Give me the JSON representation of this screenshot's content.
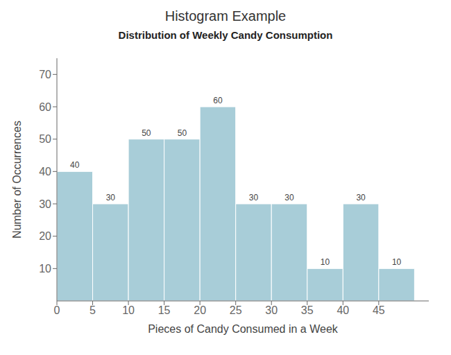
{
  "chart_data": {
    "type": "histogram",
    "title": "Histogram Example",
    "subtitle": "Distribution of Weekly Candy Consumption",
    "xlabel": "Pieces of Candy Consumed in a Week",
    "ylabel": "Number of Occurrences",
    "bins": [
      0,
      5,
      10,
      15,
      20,
      25,
      30,
      35,
      40,
      45,
      50
    ],
    "values": [
      40,
      30,
      50,
      50,
      60,
      30,
      30,
      10,
      30,
      10
    ],
    "color": "#a8cdd8",
    "xlim": [
      0,
      52
    ],
    "xticks": [
      0,
      5,
      10,
      15,
      20,
      25,
      30,
      35,
      40,
      45
    ],
    "ylim": [
      0,
      75
    ],
    "yticks": [
      10,
      20,
      30,
      40,
      50,
      60,
      70
    ],
    "data_labels": true,
    "grid": false
  }
}
